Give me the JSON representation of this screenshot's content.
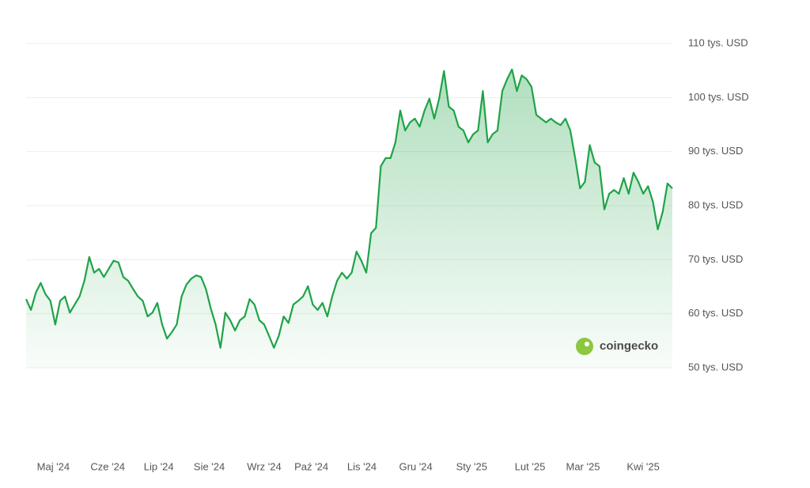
{
  "chart_data": {
    "type": "line",
    "color": "#1fa347",
    "values": [
      62700,
      60700,
      63900,
      65700,
      63600,
      62400,
      58000,
      62400,
      63200,
      60200,
      61700,
      63200,
      66100,
      70500,
      67600,
      68300,
      66800,
      68300,
      69800,
      69500,
      66800,
      66100,
      64600,
      63200,
      62400,
      59500,
      60200,
      62000,
      58000,
      55400,
      56600,
      58000,
      63200,
      65400,
      66500,
      67100,
      66800,
      64600,
      61000,
      58000,
      53700,
      60200,
      58800,
      56900,
      58800,
      59500,
      62700,
      61700,
      58800,
      58000,
      55900,
      53700,
      55900,
      59500,
      58300,
      61700,
      62400,
      63200,
      65100,
      61700,
      60700,
      62000,
      59500,
      63200,
      66100,
      67600,
      66500,
      67600,
      71500,
      69800,
      67600,
      74900,
      75900,
      87300,
      88800,
      88800,
      91700,
      97600,
      93900,
      95400,
      96100,
      94600,
      97600,
      99800,
      96100,
      99800,
      104900,
      98300,
      97600,
      94600,
      93900,
      91700,
      93200,
      93900,
      101200,
      91700,
      93200,
      93900,
      101200,
      103400,
      105200,
      101200,
      104100,
      103400,
      102000,
      96800,
      96100,
      95400,
      96100,
      95400,
      94900,
      96100,
      93900,
      88800,
      83200,
      84400,
      91200,
      88000,
      87300,
      79300,
      82200,
      82900,
      82200,
      85100,
      82200,
      86100,
      84400,
      82200,
      83600,
      80700,
      75600,
      78800,
      84100,
      83200
    ],
    "xlim": [
      0,
      133
    ],
    "xticks": [
      {
        "value": 5.6,
        "label": "Maj '24"
      },
      {
        "value": 16.8,
        "label": "Cze '24"
      },
      {
        "value": 27.3,
        "label": "Lip '24"
      },
      {
        "value": 37.7,
        "label": "Sie '24"
      },
      {
        "value": 49,
        "label": "Wrz '24"
      },
      {
        "value": 58.7,
        "label": "Paź '24"
      },
      {
        "value": 69.1,
        "label": "Lis '24"
      },
      {
        "value": 80.2,
        "label": "Gru '24"
      },
      {
        "value": 91.7,
        "label": "Sty '25"
      },
      {
        "value": 103.7,
        "label": "Lut '25"
      },
      {
        "value": 114.6,
        "label": "Mar '25"
      },
      {
        "value": 127,
        "label": "Kwi '25"
      }
    ],
    "ylim": [
      50000,
      110000
    ],
    "yticks": [
      {
        "value": 110000,
        "label": "110 tys. USD"
      },
      {
        "value": 100000,
        "label": "100 tys. USD"
      },
      {
        "value": 90000,
        "label": "90 tys. USD"
      },
      {
        "value": 80000,
        "label": "80 tys. USD"
      },
      {
        "value": 70000,
        "label": "70 tys. USD"
      },
      {
        "value": 60000,
        "label": "60 tys. USD"
      },
      {
        "value": 50000,
        "label": "50 tys. USD"
      }
    ],
    "grid": true,
    "watermark": "coingecko"
  }
}
